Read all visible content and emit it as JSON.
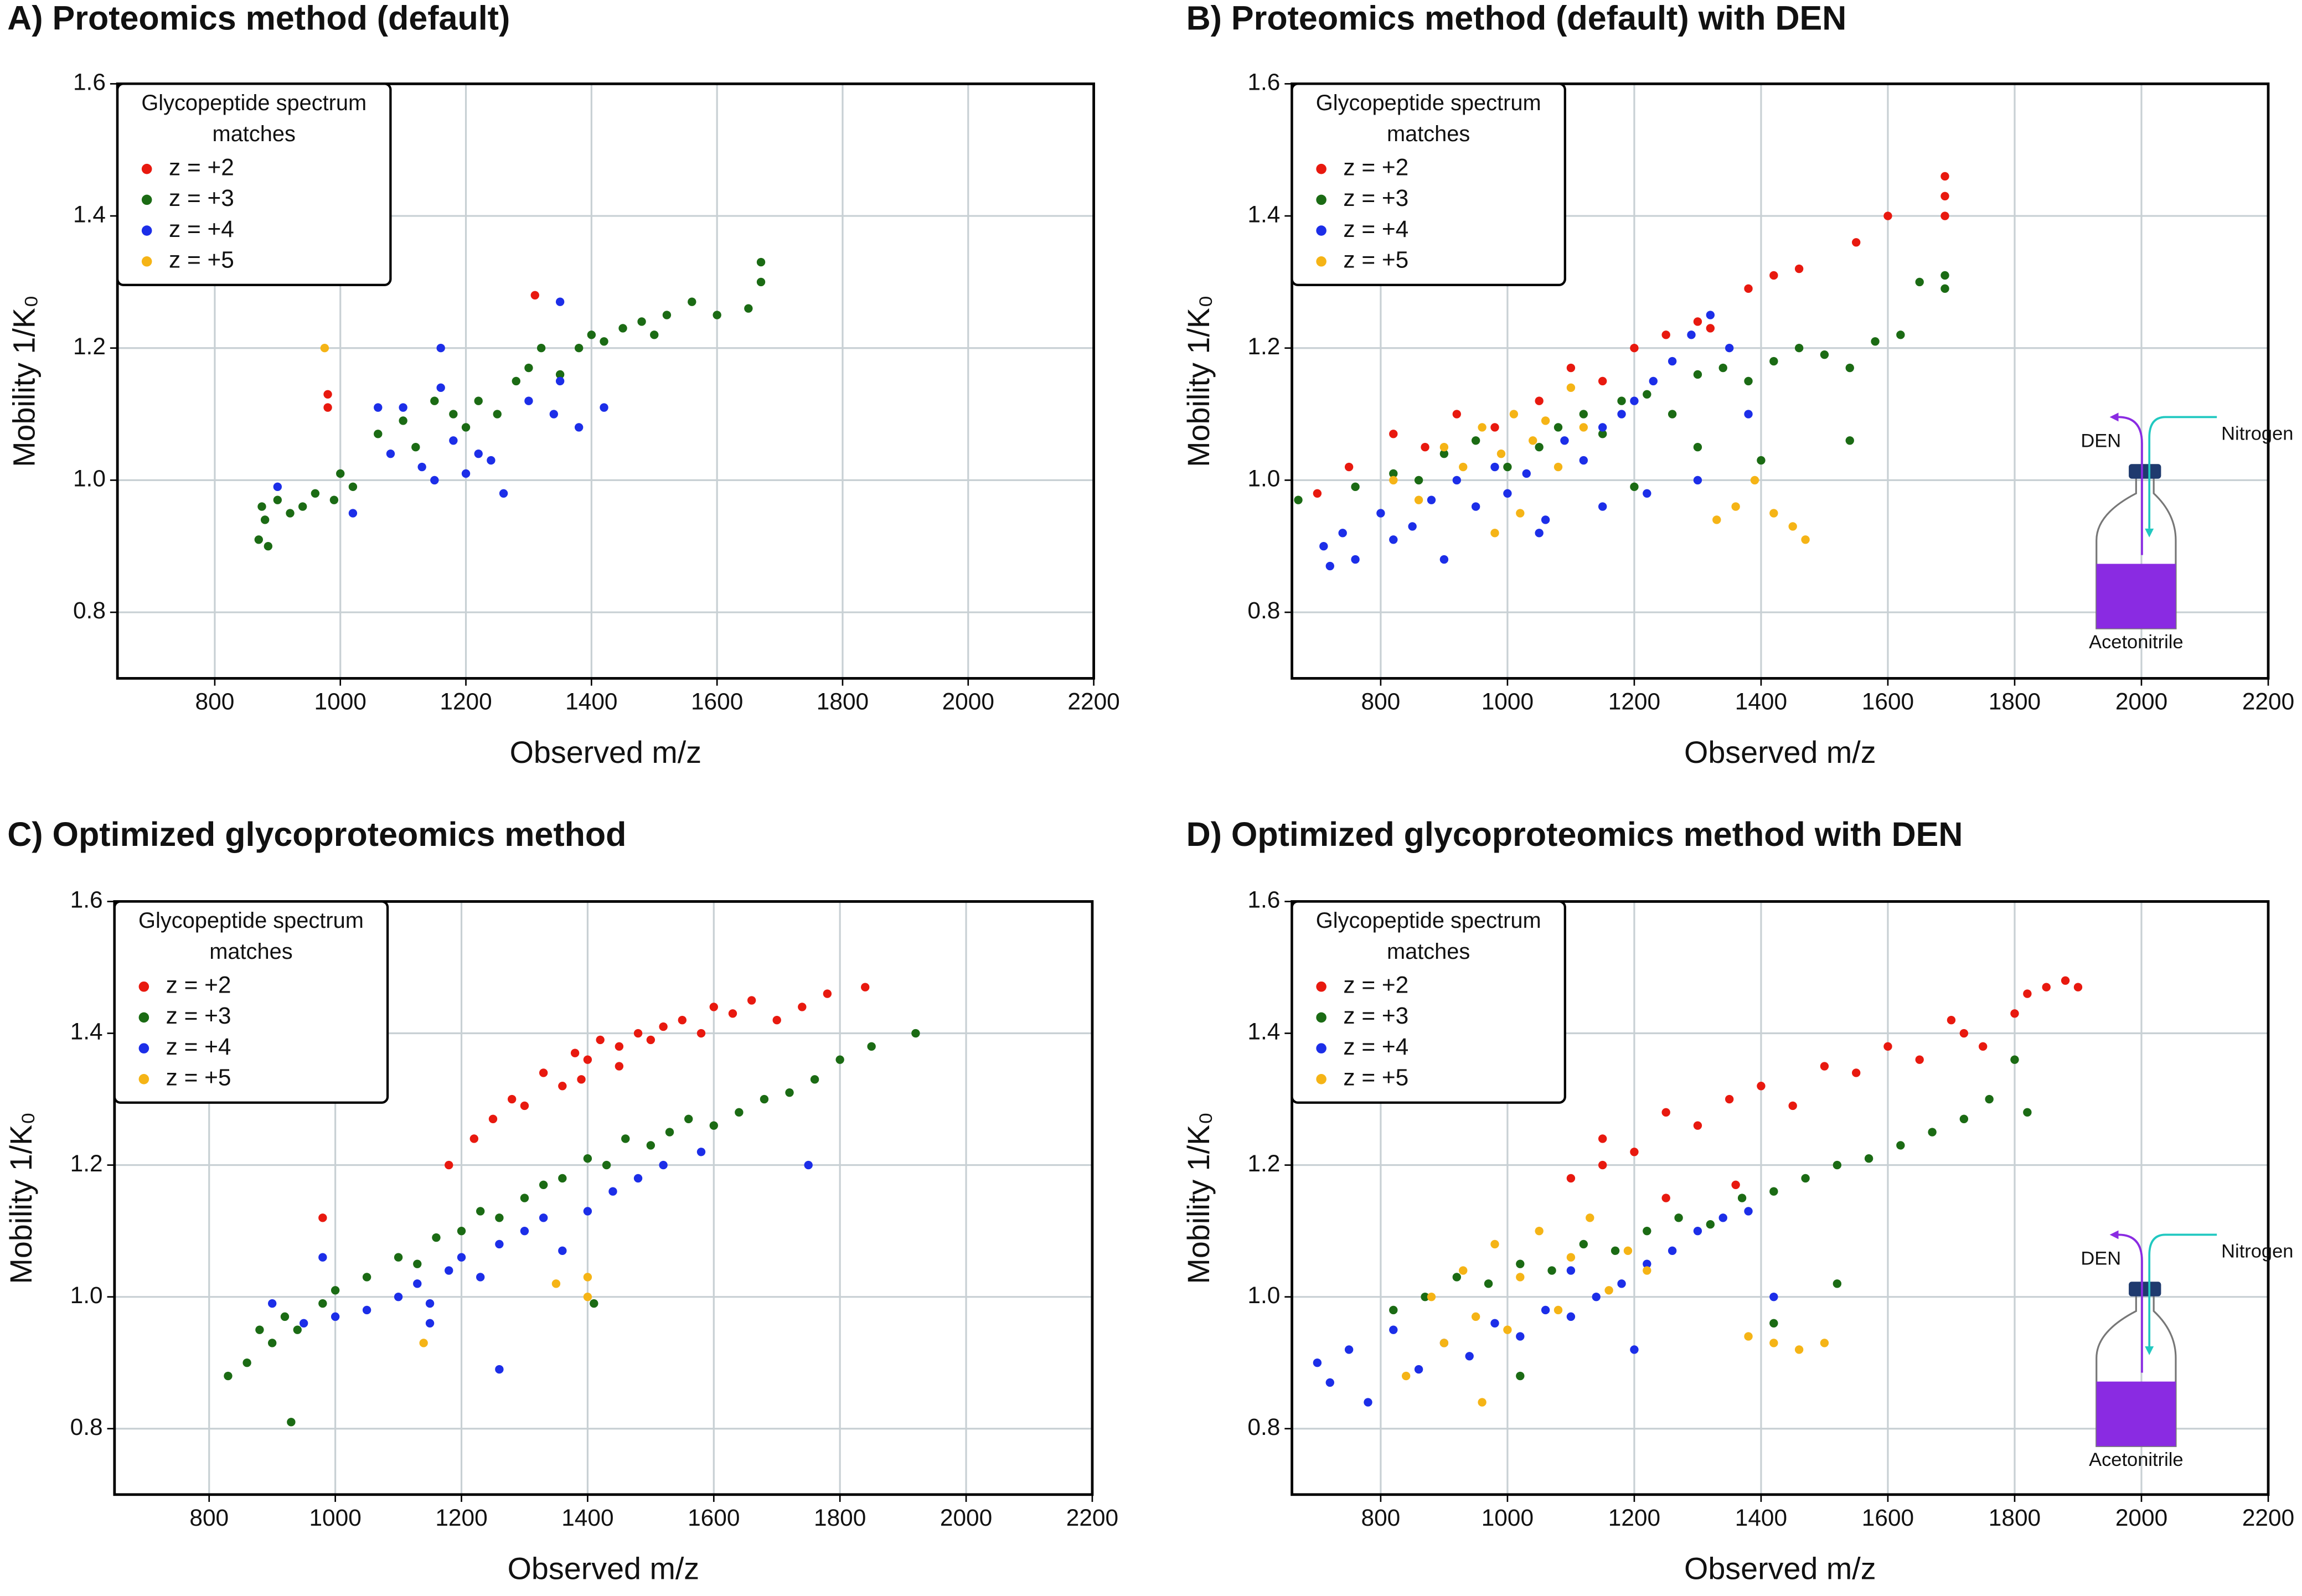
{
  "chart_data": [
    {
      "type": "scatter",
      "title": "A) Proteomics method (default)",
      "xlabel": "Observed m/z",
      "ylabel": "Mobility 1/K₀",
      "legend_title": "Glycopeptide spectrum matches",
      "legend": "upper left",
      "grid": true,
      "xlim": [
        645,
        2200
      ],
      "xticks": [
        800,
        1000,
        1200,
        1400,
        1600,
        1800,
        2000,
        2200
      ],
      "ylim": [
        0.7,
        1.6
      ],
      "yticks": [
        0.8,
        {
          "value": 1,
          "label": "1.0"
        },
        1.2,
        1.4,
        1.6
      ],
      "series": [
        {
          "name": "z = +2",
          "color": "#e8190f",
          "x": [
            980,
            980,
            1310
          ],
          "values": [
            1.13,
            1.11,
            1.28
          ]
        },
        {
          "name": "z = +3",
          "color": "#1b6b14",
          "x": [
            870,
            875,
            880,
            885,
            900,
            920,
            940,
            960,
            990,
            1000,
            1020,
            1060,
            1100,
            1120,
            1150,
            1180,
            1200,
            1220,
            1250,
            1280,
            1300,
            1320,
            1350,
            1380,
            1400,
            1420,
            1450,
            1480,
            1500,
            1520,
            1560,
            1600,
            1650,
            1670,
            1670
          ],
          "values": [
            0.91,
            0.96,
            0.94,
            0.9,
            0.97,
            0.95,
            0.96,
            0.98,
            0.97,
            1.01,
            0.99,
            1.07,
            1.09,
            1.05,
            1.12,
            1.1,
            1.08,
            1.12,
            1.1,
            1.15,
            1.17,
            1.2,
            1.16,
            1.2,
            1.22,
            1.21,
            1.23,
            1.24,
            1.22,
            1.25,
            1.27,
            1.25,
            1.26,
            1.3,
            1.33
          ]
        },
        {
          "name": "z = +4",
          "color": "#1c2ee8",
          "x": [
            900,
            1020,
            1060,
            1080,
            1100,
            1130,
            1150,
            1160,
            1180,
            1200,
            1220,
            1240,
            1260,
            1300,
            1340,
            1350,
            1350,
            1380,
            1420,
            1160
          ],
          "values": [
            0.99,
            0.95,
            1.11,
            1.04,
            1.11,
            1.02,
            1.0,
            1.2,
            1.06,
            1.01,
            1.04,
            1.03,
            0.98,
            1.12,
            1.1,
            1.27,
            1.15,
            1.08,
            1.11,
            1.14
          ]
        },
        {
          "name": "z = +5",
          "color": "#f5b416",
          "x": [
            975
          ],
          "values": [
            1.2
          ]
        }
      ]
    },
    {
      "type": "scatter",
      "title": "B) Proteomics method (default) with DEN",
      "xlabel": "Observed m/z",
      "ylabel": "Mobility 1/K₀",
      "legend_title": "Glycopeptide spectrum matches",
      "legend": "upper left",
      "grid": true,
      "annotations": [
        "DEN",
        "Nitrogen",
        "Acetonitrile"
      ],
      "xlim": [
        660,
        2200
      ],
      "xticks": [
        800,
        1000,
        1200,
        1400,
        1600,
        1800,
        2000,
        2200
      ],
      "ylim": [
        0.7,
        1.6
      ],
      "yticks": [
        0.8,
        {
          "value": 1,
          "label": "1.0"
        },
        1.2,
        1.4,
        1.6
      ],
      "series": [
        {
          "name": "z = +2",
          "color": "#e8190f",
          "x": [
            700,
            750,
            820,
            870,
            920,
            980,
            1050,
            1100,
            1150,
            1200,
            1250,
            1300,
            1320,
            1380,
            1420,
            1460,
            1550,
            1600,
            1690,
            1690,
            1690
          ],
          "values": [
            0.98,
            1.02,
            1.07,
            1.05,
            1.1,
            1.08,
            1.12,
            1.17,
            1.15,
            1.2,
            1.22,
            1.24,
            1.23,
            1.29,
            1.31,
            1.32,
            1.36,
            1.4,
            1.4,
            1.43,
            1.46
          ]
        },
        {
          "name": "z = +3",
          "color": "#1b6b14",
          "x": [
            670,
            760,
            820,
            860,
            900,
            950,
            1000,
            1050,
            1080,
            1120,
            1150,
            1180,
            1220,
            1260,
            1300,
            1340,
            1380,
            1420,
            1460,
            1500,
            1540,
            1580,
            1620,
            1650,
            1690,
            1690,
            1540,
            1400,
            1300,
            1200
          ],
          "values": [
            0.97,
            0.99,
            1.01,
            1.0,
            1.04,
            1.06,
            1.02,
            1.05,
            1.08,
            1.1,
            1.07,
            1.12,
            1.13,
            1.1,
            1.16,
            1.17,
            1.15,
            1.18,
            1.2,
            1.19,
            1.17,
            1.21,
            1.22,
            1.3,
            1.31,
            1.29,
            1.06,
            1.03,
            1.05,
            0.99
          ]
        },
        {
          "name": "z = +4",
          "color": "#1c2ee8",
          "x": [
            710,
            720,
            740,
            760,
            800,
            820,
            850,
            880,
            900,
            920,
            950,
            980,
            1000,
            1030,
            1060,
            1090,
            1120,
            1150,
            1180,
            1200,
            1230,
            1260,
            1290,
            1320,
            1350,
            1380,
            1220,
            1300,
            1150,
            1050
          ],
          "values": [
            0.9,
            0.87,
            0.92,
            0.88,
            0.95,
            0.91,
            0.93,
            0.97,
            0.88,
            1.0,
            0.96,
            1.02,
            0.98,
            1.01,
            0.94,
            1.06,
            1.03,
            1.08,
            1.1,
            1.12,
            1.15,
            1.18,
            1.22,
            1.25,
            1.2,
            1.1,
            0.98,
            1.0,
            0.96,
            0.92
          ]
        },
        {
          "name": "z = +5",
          "color": "#f5b416",
          "x": [
            820,
            860,
            900,
            930,
            960,
            990,
            1010,
            1040,
            1060,
            1080,
            1100,
            1120,
            1020,
            980,
            1330,
            1360,
            1390,
            1420,
            1450,
            1470
          ],
          "values": [
            1.0,
            0.97,
            1.05,
            1.02,
            1.08,
            1.04,
            1.1,
            1.06,
            1.09,
            1.02,
            1.14,
            1.08,
            0.95,
            0.92,
            0.94,
            0.96,
            1.0,
            0.95,
            0.93,
            0.91
          ]
        }
      ]
    },
    {
      "type": "scatter",
      "title": "C) Optimized glycoproteomics method",
      "xlabel": "Observed m/z",
      "ylabel": "Mobility 1/K₀",
      "legend_title": "Glycopeptide spectrum matches",
      "legend": "upper left",
      "grid": true,
      "xlim": [
        650,
        2200
      ],
      "xticks": [
        800,
        1000,
        1200,
        1400,
        1600,
        1800,
        2000,
        2200
      ],
      "ylim": [
        0.7,
        1.6
      ],
      "yticks": [
        0.8,
        {
          "value": 1,
          "label": "1.0"
        },
        1.2,
        1.4,
        1.6
      ],
      "series": [
        {
          "name": "z = +2",
          "color": "#e8190f",
          "x": [
            980,
            1180,
            1220,
            1250,
            1280,
            1300,
            1330,
            1360,
            1380,
            1400,
            1420,
            1450,
            1480,
            1500,
            1520,
            1550,
            1580,
            1600,
            1630,
            1660,
            1700,
            1740,
            1780,
            1840,
            1390,
            1450
          ],
          "values": [
            1.12,
            1.2,
            1.24,
            1.27,
            1.3,
            1.29,
            1.34,
            1.32,
            1.37,
            1.36,
            1.39,
            1.38,
            1.4,
            1.39,
            1.41,
            1.42,
            1.4,
            1.44,
            1.43,
            1.45,
            1.42,
            1.44,
            1.46,
            1.47,
            1.33,
            1.35
          ]
        },
        {
          "name": "z = +3",
          "color": "#1b6b14",
          "x": [
            830,
            860,
            880,
            900,
            920,
            940,
            980,
            1000,
            1050,
            1100,
            1130,
            1160,
            1200,
            1230,
            1260,
            1300,
            1330,
            1360,
            1400,
            1430,
            1460,
            1500,
            1530,
            1560,
            1600,
            1640,
            1680,
            1720,
            1760,
            1800,
            1850,
            1920,
            1410,
            930
          ],
          "values": [
            0.88,
            0.9,
            0.95,
            0.93,
            0.97,
            0.95,
            0.99,
            1.01,
            1.03,
            1.06,
            1.05,
            1.09,
            1.1,
            1.13,
            1.12,
            1.15,
            1.17,
            1.18,
            1.21,
            1.2,
            1.24,
            1.23,
            1.25,
            1.27,
            1.26,
            1.28,
            1.3,
            1.31,
            1.33,
            1.36,
            1.38,
            1.4,
            0.99,
            0.81
          ]
        },
        {
          "name": "z = +4",
          "color": "#1c2ee8",
          "x": [
            900,
            950,
            1000,
            1050,
            1100,
            1130,
            1150,
            1180,
            1200,
            1230,
            1260,
            1300,
            1330,
            1360,
            1400,
            1440,
            1480,
            1520,
            1580,
            1750,
            1260,
            1150,
            980
          ],
          "values": [
            0.99,
            0.96,
            0.97,
            0.98,
            1.0,
            1.02,
            0.99,
            1.04,
            1.06,
            1.03,
            1.08,
            1.1,
            1.12,
            1.07,
            1.13,
            1.16,
            1.18,
            1.2,
            1.22,
            1.2,
            0.89,
            0.96,
            1.06
          ]
        },
        {
          "name": "z = +5",
          "color": "#f5b416",
          "x": [
            1140,
            1350,
            1400,
            1400
          ],
          "values": [
            0.93,
            1.02,
            1.03,
            1.0
          ]
        }
      ]
    },
    {
      "type": "scatter",
      "title": "D) Optimized glycoproteomics method with DEN",
      "xlabel": "Observed m/z",
      "ylabel": "Mobility 1/K₀",
      "legend_title": "Glycopeptide spectrum matches",
      "legend": "upper left",
      "grid": true,
      "annotations": [
        "DEN",
        "Nitrogen",
        "Acetonitrile"
      ],
      "xlim": [
        660,
        2200
      ],
      "xticks": [
        800,
        1000,
        1200,
        1400,
        1600,
        1800,
        2000,
        2200
      ],
      "ylim": [
        0.7,
        1.6
      ],
      "yticks": [
        0.8,
        {
          "value": 1,
          "label": "1.0"
        },
        1.2,
        1.4,
        1.6
      ],
      "series": [
        {
          "name": "z = +2",
          "color": "#e8190f",
          "x": [
            1100,
            1150,
            1200,
            1250,
            1300,
            1350,
            1400,
            1450,
            1500,
            1550,
            1600,
            1650,
            1700,
            1720,
            1750,
            1800,
            1820,
            1850,
            1880,
            1900,
            1150,
            1250,
            1360
          ],
          "values": [
            1.18,
            1.24,
            1.22,
            1.28,
            1.26,
            1.3,
            1.32,
            1.29,
            1.35,
            1.34,
            1.38,
            1.36,
            1.42,
            1.4,
            1.38,
            1.43,
            1.46,
            1.47,
            1.48,
            1.47,
            1.2,
            1.15,
            1.17
          ]
        },
        {
          "name": "z = +3",
          "color": "#1b6b14",
          "x": [
            820,
            870,
            920,
            970,
            1020,
            1070,
            1120,
            1170,
            1220,
            1270,
            1320,
            1370,
            1420,
            1470,
            1520,
            1570,
            1620,
            1670,
            1720,
            1760,
            1800,
            1820,
            1520,
            1420,
            1020
          ],
          "values": [
            0.98,
            1.0,
            1.03,
            1.02,
            1.05,
            1.04,
            1.08,
            1.07,
            1.1,
            1.12,
            1.11,
            1.15,
            1.16,
            1.18,
            1.2,
            1.21,
            1.23,
            1.25,
            1.27,
            1.3,
            1.36,
            1.28,
            1.02,
            0.96,
            0.88
          ]
        },
        {
          "name": "z = +4",
          "color": "#1c2ee8",
          "x": [
            700,
            720,
            750,
            780,
            820,
            860,
            900,
            940,
            980,
            1020,
            1060,
            1100,
            1140,
            1180,
            1220,
            1260,
            1300,
            1340,
            1380,
            1420,
            1200,
            1100
          ],
          "values": [
            0.9,
            0.87,
            0.92,
            0.84,
            0.95,
            0.89,
            0.93,
            0.91,
            0.96,
            0.94,
            0.98,
            0.97,
            1.0,
            1.02,
            1.05,
            1.07,
            1.1,
            1.12,
            1.13,
            1.0,
            0.92,
            1.04
          ]
        },
        {
          "name": "z = +5",
          "color": "#f5b416",
          "x": [
            840,
            880,
            900,
            930,
            950,
            980,
            1000,
            1020,
            1050,
            1080,
            1100,
            1130,
            1160,
            1190,
            1220,
            960,
            1380,
            1420,
            1460,
            1500
          ],
          "values": [
            0.88,
            1.0,
            0.93,
            1.04,
            0.97,
            1.08,
            0.95,
            1.03,
            1.1,
            0.98,
            1.06,
            1.12,
            1.01,
            1.07,
            1.04,
            0.84,
            0.94,
            0.93,
            0.92,
            0.93
          ]
        }
      ]
    }
  ]
}
